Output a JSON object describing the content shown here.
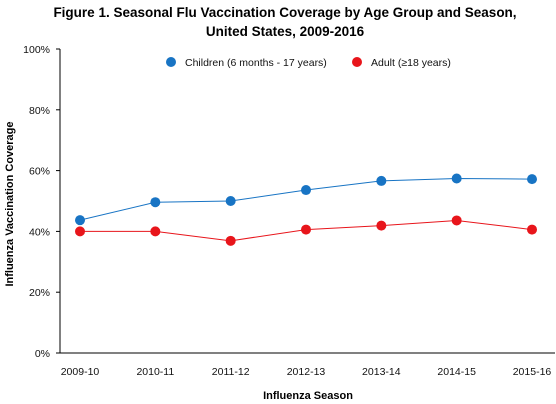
{
  "chart_data": {
    "type": "line",
    "title_line1": "Figure 1. Seasonal Flu Vaccination Coverage by Age Group and Season,",
    "title_line2": "United States, 2009-2016",
    "xlabel": "Influenza Season",
    "ylabel": "Influenza Vaccination Coverage",
    "categories": [
      "2009-10",
      "2010-11",
      "2011-12",
      "2012-13",
      "2013-14",
      "2014-15",
      "2015-16"
    ],
    "ylim": [
      0,
      100
    ],
    "yticks": [
      0,
      20,
      40,
      60,
      80,
      100
    ],
    "ytick_labels": [
      "0%",
      "20%",
      "40%",
      "60%",
      "80%",
      "100%"
    ],
    "grid": false,
    "legend_position": "top",
    "series": [
      {
        "name": "Children (6 months - 17 years)",
        "color": "#1874c4",
        "values": [
          43.7,
          49.6,
          50.0,
          53.6,
          56.6,
          57.4,
          57.2
        ]
      },
      {
        "name": "Adult (≥18 years)",
        "color": "#e8151b",
        "values": [
          40.0,
          40.0,
          36.9,
          40.6,
          41.9,
          43.6,
          40.6
        ]
      }
    ]
  }
}
